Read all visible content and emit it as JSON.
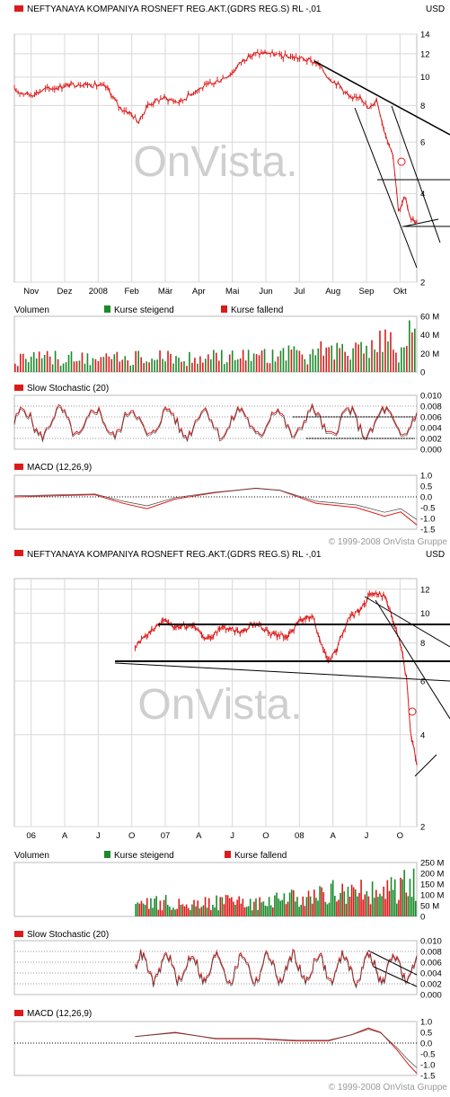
{
  "colors": {
    "up": "#1a8a2a",
    "down": "#dd1a1a",
    "line": "#dd1a1a",
    "trend": "#000000",
    "grid": "#d8d8d8"
  },
  "chart_data": [
    {
      "type": "line",
      "title": "NEFTYANAYA KOMPANIYA ROSNEFT REG.AKT.(GDRS REG.S) RL -,01",
      "currency": "USD",
      "watermark": "OnVista.",
      "copyright": "© 1999-2008 OnVista Gruppe",
      "x_labels": [
        "Nov",
        "Dez",
        "2008",
        "Feb",
        "Mär",
        "Apr",
        "Mai",
        "Jun",
        "Jul",
        "Aug",
        "Sep",
        "Okt"
      ],
      "price": {
        "y_ticks": [
          "14",
          "12",
          "10",
          "8",
          "6",
          "4",
          "2"
        ],
        "ylim": [
          2,
          14
        ],
        "scale": "log",
        "series": [
          {
            "x": 0.0,
            "y": 9.0
          },
          {
            "x": 0.04,
            "y": 8.7
          },
          {
            "x": 0.08,
            "y": 9.1
          },
          {
            "x": 0.12,
            "y": 9.3
          },
          {
            "x": 0.16,
            "y": 9.5
          },
          {
            "x": 0.2,
            "y": 9.4
          },
          {
            "x": 0.23,
            "y": 9.2
          },
          {
            "x": 0.26,
            "y": 7.9
          },
          {
            "x": 0.29,
            "y": 7.5
          },
          {
            "x": 0.31,
            "y": 7.0
          },
          {
            "x": 0.33,
            "y": 8.0
          },
          {
            "x": 0.37,
            "y": 8.5
          },
          {
            "x": 0.41,
            "y": 8.2
          },
          {
            "x": 0.45,
            "y": 9.0
          },
          {
            "x": 0.5,
            "y": 9.6
          },
          {
            "x": 0.54,
            "y": 10.3
          },
          {
            "x": 0.57,
            "y": 11.5
          },
          {
            "x": 0.6,
            "y": 12.0
          },
          {
            "x": 0.63,
            "y": 12.1
          },
          {
            "x": 0.66,
            "y": 11.8
          },
          {
            "x": 0.69,
            "y": 11.7
          },
          {
            "x": 0.72,
            "y": 11.5
          },
          {
            "x": 0.75,
            "y": 11.2
          },
          {
            "x": 0.78,
            "y": 10.0
          },
          {
            "x": 0.81,
            "y": 9.3
          },
          {
            "x": 0.84,
            "y": 8.3
          },
          {
            "x": 0.86,
            "y": 8.7
          },
          {
            "x": 0.88,
            "y": 7.7
          },
          {
            "x": 0.9,
            "y": 8.4
          },
          {
            "x": 0.92,
            "y": 6.5
          },
          {
            "x": 0.94,
            "y": 5.5
          },
          {
            "x": 0.955,
            "y": 3.4
          },
          {
            "x": 0.97,
            "y": 3.9
          },
          {
            "x": 0.985,
            "y": 3.3
          },
          {
            "x": 1.0,
            "y": 3.2
          }
        ]
      },
      "volume": {
        "label": "Volumen",
        "legend_up": "Kurse steigend",
        "legend_down": "Kurse fallend",
        "y_ticks": [
          "60 M",
          "40 M",
          "20 M",
          "0"
        ],
        "ylim": [
          0,
          60
        ]
      },
      "stochastic": {
        "label": "Slow Stochastic (20)",
        "y_ticks": [
          "0.010",
          "0.008",
          "0.006",
          "0.004",
          "0.002",
          "0.000"
        ],
        "ylim": [
          0,
          0.01
        ]
      },
      "macd": {
        "label": "MACD (12,26,9)",
        "y_ticks": [
          "1.0",
          "0.5",
          "0.0",
          "-0.5",
          "-1.0",
          "-1.5"
        ],
        "ylim": [
          -1.5,
          1.0
        ],
        "series": [
          {
            "x": 0.0,
            "y": 0.0
          },
          {
            "x": 0.1,
            "y": 0.05
          },
          {
            "x": 0.2,
            "y": 0.1
          },
          {
            "x": 0.27,
            "y": -0.3
          },
          {
            "x": 0.33,
            "y": -0.55
          },
          {
            "x": 0.4,
            "y": -0.1
          },
          {
            "x": 0.5,
            "y": 0.2
          },
          {
            "x": 0.6,
            "y": 0.4
          },
          {
            "x": 0.66,
            "y": 0.3
          },
          {
            "x": 0.75,
            "y": -0.3
          },
          {
            "x": 0.85,
            "y": -0.5
          },
          {
            "x": 0.92,
            "y": -0.9
          },
          {
            "x": 0.96,
            "y": -0.7
          },
          {
            "x": 1.0,
            "y": -1.3
          }
        ]
      }
    },
    {
      "type": "line",
      "title": "NEFTYANAYA KOMPANIYA ROSNEFT REG.AKT.(GDRS REG.S) RL -,01",
      "currency": "USD",
      "watermark": "OnVista.",
      "copyright": "© 1999-2008 OnVista Gruppe",
      "x_labels": [
        "06",
        "A",
        "J",
        "O",
        "07",
        "A",
        "J",
        "O",
        "08",
        "A",
        "J",
        "O"
      ],
      "price": {
        "y_ticks": [
          "12",
          "10",
          "8",
          "6",
          "4",
          "2"
        ],
        "ylim": [
          2,
          13
        ],
        "scale": "log",
        "series": [
          {
            "x": 0.3,
            "y": 7.8
          },
          {
            "x": 0.33,
            "y": 8.5
          },
          {
            "x": 0.37,
            "y": 9.5
          },
          {
            "x": 0.4,
            "y": 9.0
          },
          {
            "x": 0.44,
            "y": 9.2
          },
          {
            "x": 0.48,
            "y": 8.2
          },
          {
            "x": 0.52,
            "y": 9.0
          },
          {
            "x": 0.56,
            "y": 8.7
          },
          {
            "x": 0.6,
            "y": 9.3
          },
          {
            "x": 0.64,
            "y": 8.5
          },
          {
            "x": 0.68,
            "y": 8.4
          },
          {
            "x": 0.71,
            "y": 9.5
          },
          {
            "x": 0.74,
            "y": 9.8
          },
          {
            "x": 0.76,
            "y": 8.0
          },
          {
            "x": 0.78,
            "y": 6.9
          },
          {
            "x": 0.8,
            "y": 7.5
          },
          {
            "x": 0.83,
            "y": 9.5
          },
          {
            "x": 0.86,
            "y": 10.3
          },
          {
            "x": 0.89,
            "y": 11.8
          },
          {
            "x": 0.92,
            "y": 11.5
          },
          {
            "x": 0.94,
            "y": 9.5
          },
          {
            "x": 0.96,
            "y": 7.8
          },
          {
            "x": 0.975,
            "y": 6.0
          },
          {
            "x": 0.985,
            "y": 4.0
          },
          {
            "x": 1.0,
            "y": 3.2
          }
        ]
      },
      "volume": {
        "label": "Volumen",
        "legend_up": "Kurse steigend",
        "legend_down": "Kurse fallend",
        "y_ticks": [
          "250 M",
          "200 M",
          "150 M",
          "100 M",
          "50 M",
          "0"
        ],
        "ylim": [
          0,
          250
        ]
      },
      "stochastic": {
        "label": "Slow Stochastic (20)",
        "y_ticks": [
          "0.010",
          "0.008",
          "0.006",
          "0.004",
          "0.002",
          "0.000"
        ],
        "ylim": [
          0,
          0.01
        ]
      },
      "macd": {
        "label": "MACD (12,26,9)",
        "y_ticks": [
          "1.0",
          "0.5",
          "0.0",
          "-0.5",
          "-1.0",
          "-1.5"
        ],
        "ylim": [
          -1.5,
          1.0
        ],
        "series": [
          {
            "x": 0.3,
            "y": 0.3
          },
          {
            "x": 0.4,
            "y": 0.5
          },
          {
            "x": 0.5,
            "y": 0.2
          },
          {
            "x": 0.6,
            "y": 0.2
          },
          {
            "x": 0.7,
            "y": 0.1
          },
          {
            "x": 0.78,
            "y": 0.1
          },
          {
            "x": 0.84,
            "y": 0.4
          },
          {
            "x": 0.88,
            "y": 0.7
          },
          {
            "x": 0.91,
            "y": 0.5
          },
          {
            "x": 0.95,
            "y": -0.3
          },
          {
            "x": 0.98,
            "y": -1.0
          },
          {
            "x": 1.0,
            "y": -1.4
          }
        ]
      }
    }
  ]
}
